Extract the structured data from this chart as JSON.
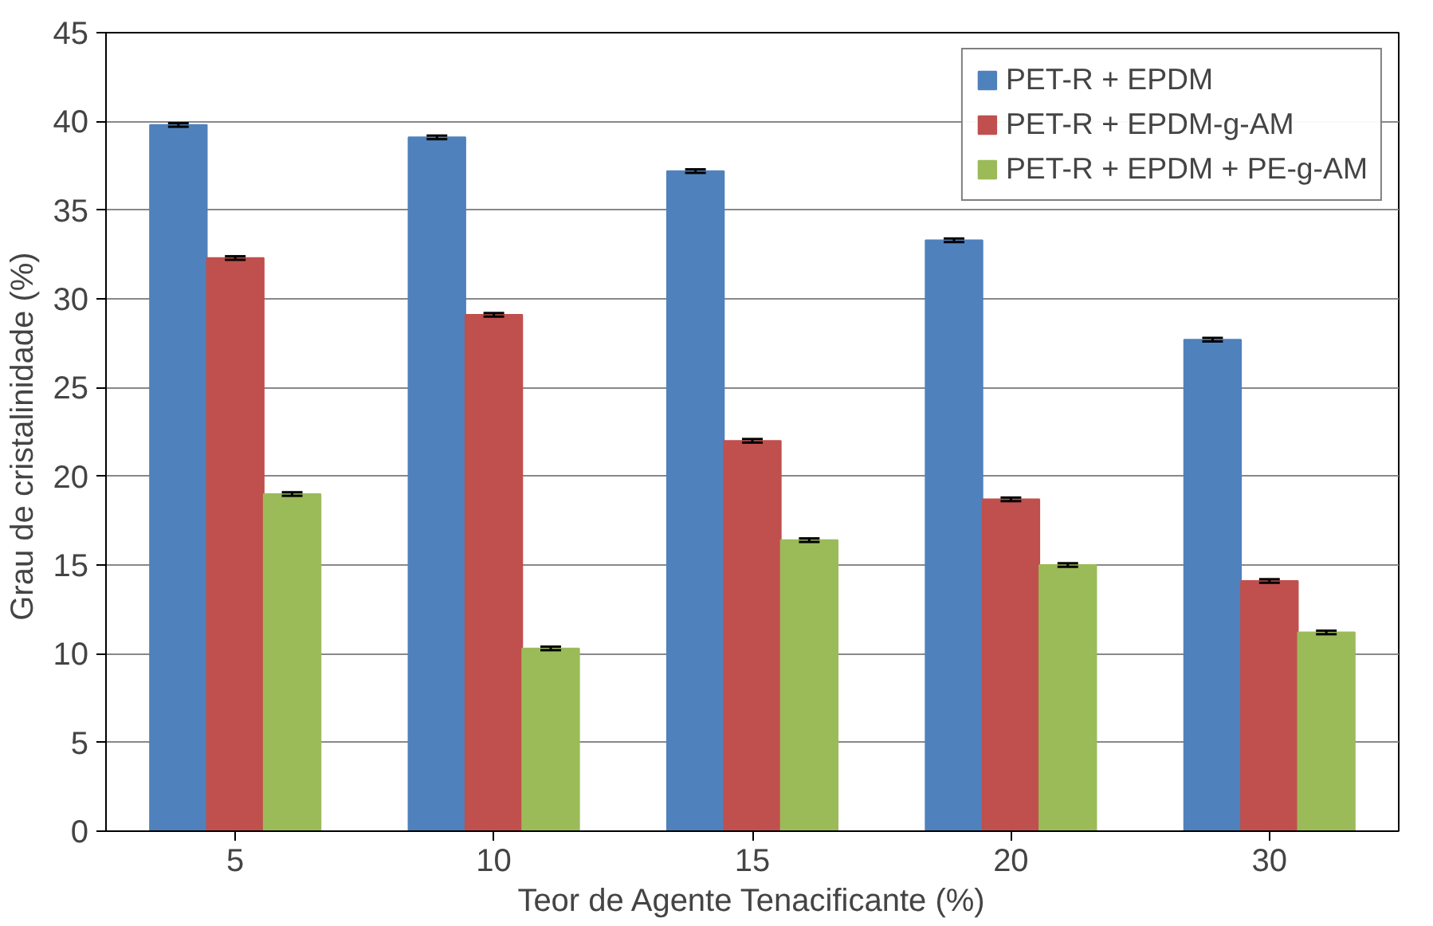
{
  "chart_data": {
    "type": "bar",
    "xlabel": "Teor de Agente Tenacificante (%)",
    "ylabel": "Grau de cristalinidade  (%)",
    "categories": [
      "5",
      "10",
      "15",
      "20",
      "30"
    ],
    "series": [
      {
        "name": "PET-R + EPDM",
        "color": "#4f81bd",
        "values": [
          39.8,
          39.1,
          37.2,
          33.3,
          27.7
        ],
        "errors": [
          0.1,
          0.1,
          0.1,
          0.1,
          0.1
        ]
      },
      {
        "name": "PET-R + EPDM-g-AM",
        "color": "#c0504d",
        "values": [
          32.3,
          29.1,
          22.0,
          18.7,
          14.1
        ],
        "errors": [
          0.1,
          0.1,
          0.1,
          0.1,
          0.1
        ]
      },
      {
        "name": "PET-R + EPDM + PE-g-AM",
        "color": "#9bbb59",
        "values": [
          19.0,
          10.3,
          16.4,
          15.0,
          11.2
        ],
        "errors": [
          0.1,
          0.1,
          0.1,
          0.1,
          0.1
        ]
      }
    ],
    "ylim": [
      0,
      45
    ],
    "yticks": [
      0,
      5,
      10,
      15,
      20,
      25,
      30,
      35,
      40,
      45
    ],
    "grid": "y",
    "legend": "top right"
  }
}
